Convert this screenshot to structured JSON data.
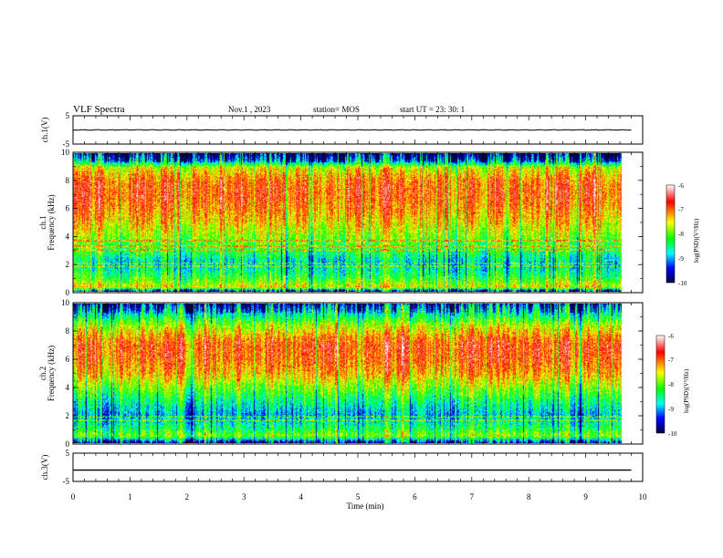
{
  "header": {
    "title": "VLF Spectra",
    "date": "Nov.1 , 2023",
    "station": "station= MOS",
    "start": "start UT = 23: 30: 1"
  },
  "colorbar": {
    "label": "log(PSD)(V²/Hz)",
    "ticks": [
      "-6",
      "-7",
      "-8",
      "-9",
      "-10"
    ],
    "stops": [
      "#ffffff",
      "#ff0000",
      "#ffff00",
      "#00ff00",
      "#00ffff",
      "#0000ff",
      "#000040"
    ]
  },
  "chart_data": [
    {
      "type": "line",
      "name": "ch1-waveform",
      "ylabel": "ch.1(V)",
      "ylim": [
        -5,
        5
      ],
      "yticks": [
        "5",
        "-5"
      ],
      "xlim": [
        0,
        10
      ],
      "level": 0,
      "x_end": 9.8
    },
    {
      "type": "heatmap",
      "name": "ch1-spectrogram",
      "ylabel": "ch.1\nFrequency (kHz)",
      "ylim": [
        0,
        10
      ],
      "yticks": [
        "0",
        "2",
        "4",
        "6",
        "8",
        "10"
      ],
      "xlim": [
        0,
        10
      ],
      "x_end": 9.8,
      "zlim": [
        -10,
        -6
      ],
      "profile": {
        "freq_khz": [
          0,
          0.3,
          1,
          2,
          3,
          4,
          5,
          6,
          7,
          8,
          9,
          9.5,
          10
        ],
        "log_psd": [
          -9.5,
          -7.5,
          -8.2,
          -8.8,
          -8.2,
          -7.8,
          -7.4,
          -7.1,
          -6.9,
          -7.0,
          -7.6,
          -9.2,
          -9.8
        ]
      },
      "lines_khz": [
        1.8,
        2.0,
        3.0,
        3.3,
        3.7
      ]
    },
    {
      "type": "heatmap",
      "name": "ch2-spectrogram",
      "ylabel": "ch.2\nFrequency (kHz)",
      "ylim": [
        0,
        10
      ],
      "yticks": [
        "0",
        "2",
        "4",
        "6",
        "8",
        "10"
      ],
      "xlim": [
        0,
        10
      ],
      "x_end": 9.8,
      "zlim": [
        -10,
        -6
      ],
      "profile": {
        "freq_khz": [
          0,
          0.5,
          1,
          2,
          3,
          4,
          5,
          6,
          7,
          7.5,
          8.5,
          9.3,
          10
        ],
        "log_psd": [
          -9.5,
          -7.8,
          -8.3,
          -8.9,
          -8.4,
          -7.8,
          -7.2,
          -6.9,
          -6.8,
          -7.0,
          -7.7,
          -8.6,
          -9.4
        ]
      },
      "lines_khz": [
        1.6,
        1.9
      ]
    },
    {
      "type": "line",
      "name": "ch3-waveform",
      "ylabel": "ch.3(V)",
      "ylim": [
        -5,
        5
      ],
      "yticks": [
        "5",
        "-5"
      ],
      "xlim": [
        0,
        10
      ],
      "level": -1,
      "x_end": 9.8,
      "xlabel": "Time (min)",
      "xticks": [
        "0",
        "1",
        "2",
        "3",
        "4",
        "5",
        "6",
        "7",
        "8",
        "9",
        "10"
      ]
    }
  ]
}
